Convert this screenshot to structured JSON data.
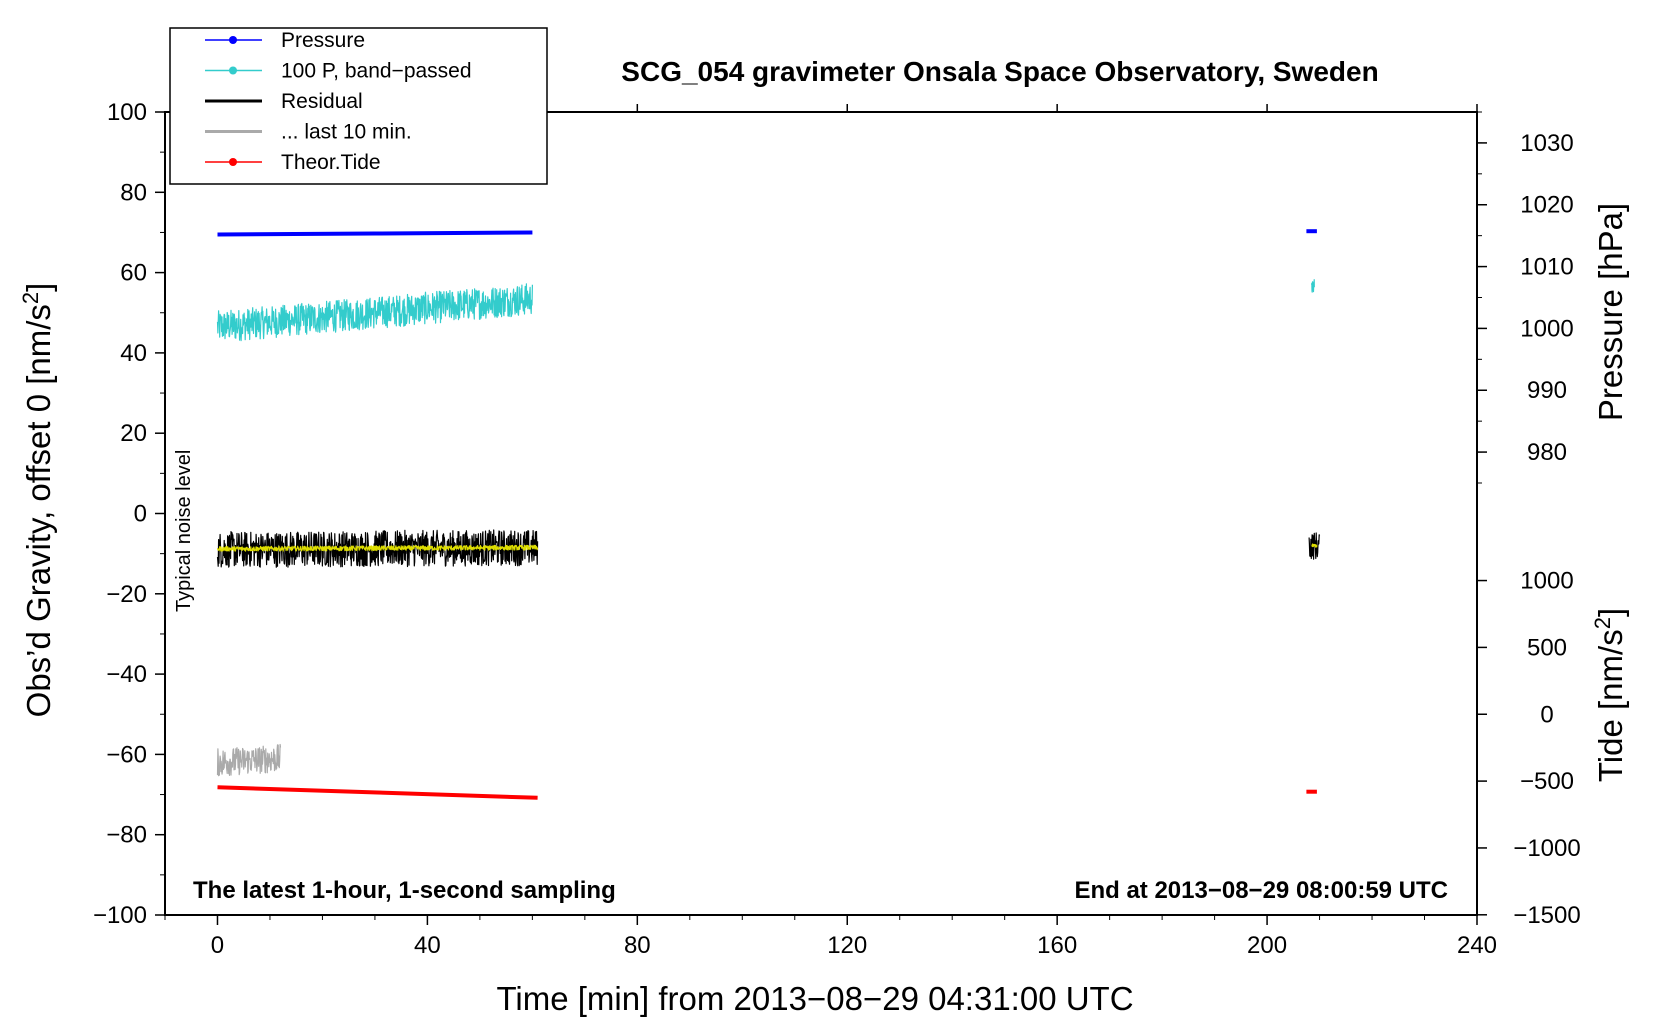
{
  "chart_data": {
    "type": "line",
    "title": "SCG_054 gravimeter Onsala Space Observatory, Sweden",
    "xlabel": "Time [min] from 2013−08−29 04:31:00 UTC",
    "ylabel_left": "Obs’d Gravity, offset 0 [nm/s",
    "ylabel_left_sup": "2",
    "ylabel_left_end": "]",
    "ylabel_right_pressure": "Pressure [hPa]",
    "ylabel_right_tide": "Tide [nm/s",
    "ylabel_right_tide_sup": "2",
    "ylabel_right_tide_end": "]",
    "xlim": [
      -10,
      240
    ],
    "ylim": [
      -100,
      100
    ],
    "x_ticks": [
      "0",
      "40",
      "80",
      "120",
      "160",
      "200",
      "240"
    ],
    "x_tick_values": [
      0,
      40,
      80,
      120,
      160,
      200,
      240
    ],
    "y_ticks": [
      "100",
      "80",
      "60",
      "40",
      "20",
      "0",
      "−20",
      "−40",
      "−60",
      "−80",
      "−100"
    ],
    "y_tick_values": [
      100,
      80,
      60,
      40,
      20,
      0,
      -20,
      -40,
      -60,
      -80,
      -100
    ],
    "pressure_ticks": [
      "1030",
      "1020",
      "1010",
      "1000",
      "990",
      "980"
    ],
    "pressure_tick_values": [
      1030,
      1020,
      1010,
      1000,
      990,
      980
    ],
    "pressure_to_gravity": {
      "p0": 1030,
      "g0": 92.3,
      "g_per_hpa": 1.54
    },
    "tide_ticks": [
      "1000",
      "500",
      "0",
      "−500",
      "−1000",
      "−1500"
    ],
    "tide_tick_values": [
      1000,
      500,
      0,
      -500,
      -1000,
      -1500
    ],
    "tide_to_gravity": {
      "t0": 0,
      "g0": -50,
      "g_per_unit": 0.0333
    },
    "annotation_left": "The latest 1-hour, 1-second sampling",
    "annotation_right": "End at 2013−08−29 08:00:59 UTC",
    "noise_label": "Typical noise level",
    "legend_position": "top-left",
    "series": [
      {
        "name": "Pressure",
        "color": "#0000ff",
        "style": "line-dot",
        "segments": [
          {
            "x": [
              0,
              60
            ],
            "y": [
              69.5,
              70.0
            ]
          },
          {
            "x": [
              207.5,
              209.5
            ],
            "y": [
              70.3,
              70.3
            ]
          }
        ]
      },
      {
        "name": "100 P, band−passed",
        "color": "#33cccc",
        "style": "line-dot",
        "segments": [
          {
            "x": [
              0,
              60
            ],
            "y": [
              46.5,
              53.5
            ],
            "noise": 8
          },
          {
            "x": [
              208.5,
              209
            ],
            "y": [
              56,
              57
            ],
            "noise": 3
          }
        ]
      },
      {
        "name": "Residual",
        "color": "#000000",
        "style": "line",
        "segments": [
          {
            "x": [
              0,
              61
            ],
            "y": [
              -9,
              -8.5
            ],
            "noise": 9
          },
          {
            "x": [
              208,
              210
            ],
            "y": [
              -8,
              -8
            ],
            "noise": 7
          }
        ]
      },
      {
        "name": "... last 10 min.",
        "color": "#aaaaaa",
        "style": "line",
        "segments": [
          {
            "x": [
              0,
              12
            ],
            "y": [
              -62,
              -61
            ],
            "noise": 7
          }
        ]
      },
      {
        "name": "Theor.Tide",
        "color": "#ff0000",
        "style": "line-dot",
        "segments": [
          {
            "x": [
              0,
              61
            ],
            "y": [
              -68.2,
              -70.8
            ]
          },
          {
            "x": [
              207.5,
              209.5
            ],
            "y": [
              -69.3,
              -69.3
            ]
          }
        ]
      },
      {
        "name": "",
        "color": "#dddd00",
        "style": "line",
        "legend": false,
        "segments": [
          {
            "x": [
              0,
              61
            ],
            "y": [
              -8.8,
              -8.5
            ],
            "noise": 1.2
          },
          {
            "x": [
              208.5,
              209.5
            ],
            "y": [
              -8,
              -8
            ],
            "noise": 0.8
          }
        ]
      }
    ]
  }
}
